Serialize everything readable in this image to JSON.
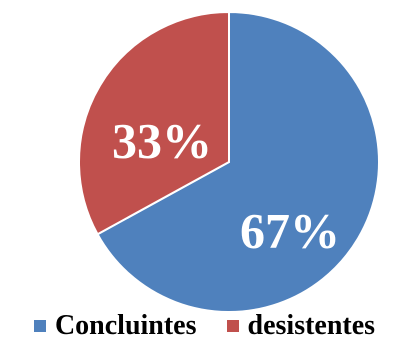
{
  "chart_data": {
    "type": "pie",
    "title": "",
    "categories": [
      "Concluintes",
      "desistentes"
    ],
    "values": [
      67,
      33
    ],
    "data_labels": [
      "67%",
      "33%"
    ],
    "colors": [
      "#4f81bd",
      "#c0504d"
    ],
    "legend_position": "bottom",
    "start": "12 o'clock",
    "direction": "clockwise"
  }
}
